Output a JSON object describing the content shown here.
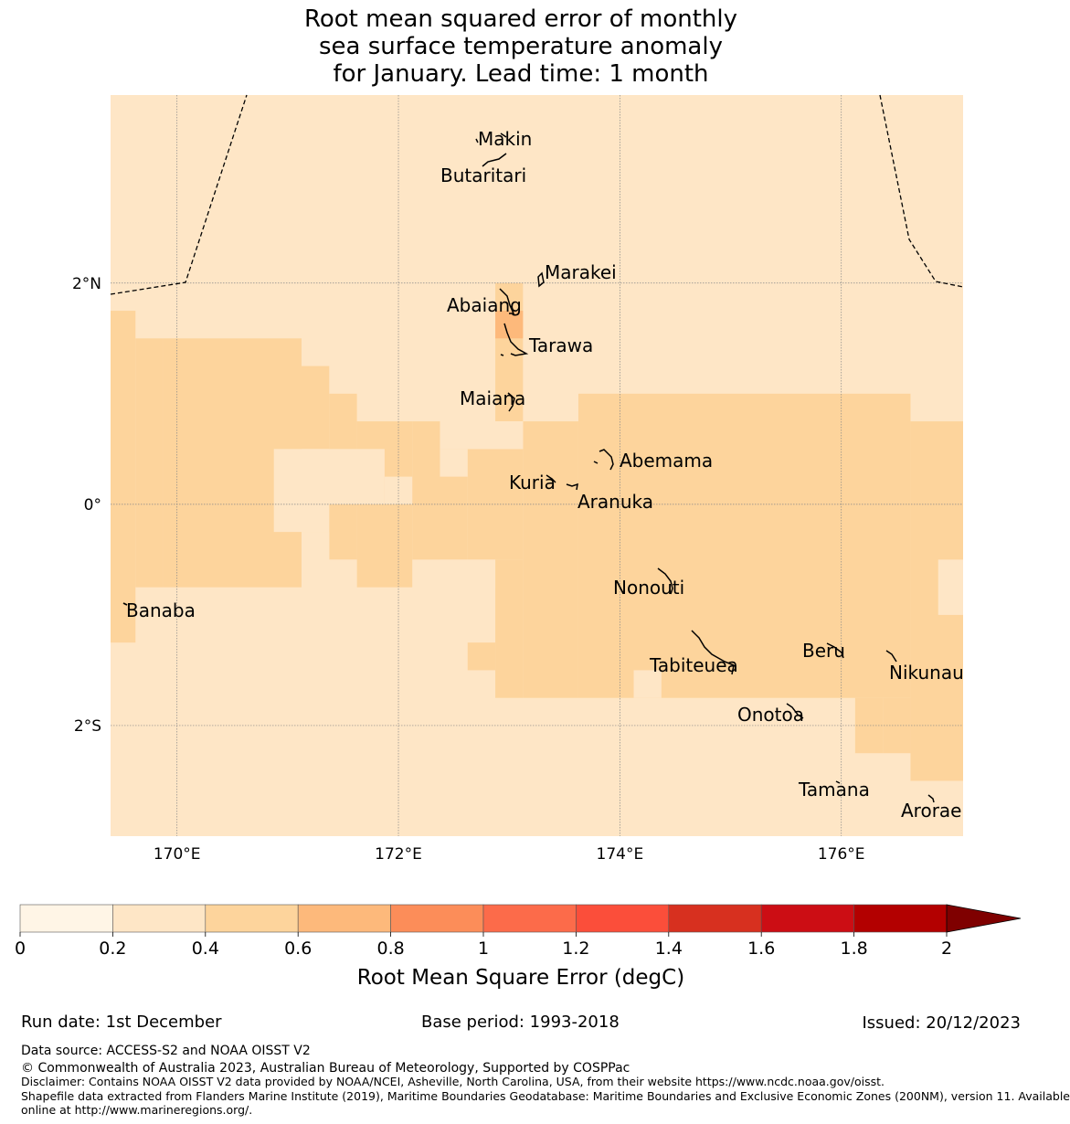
{
  "title": {
    "line1": "Root mean squared error of monthly",
    "line2": "sea surface temperature anomaly",
    "line3": "for January. Lead time: 1 month"
  },
  "map": {
    "lon_range": [
      169.4,
      177.1
    ],
    "lat_range": [
      -3.0,
      3.7
    ],
    "lon_ticks": [
      {
        "value": 170,
        "label": "170°E"
      },
      {
        "value": 172,
        "label": "172°E"
      },
      {
        "value": 174,
        "label": "174°E"
      },
      {
        "value": 176,
        "label": "176°E"
      }
    ],
    "lat_ticks": [
      {
        "value": 2,
        "label": "2°N"
      },
      {
        "value": 0,
        "label": "0°"
      },
      {
        "value": -2,
        "label": "2°S"
      }
    ],
    "background_class": "0.2-0.4",
    "cell_size_deg": 0.25,
    "rmse_patches": [
      {
        "cls": "0.4-0.6",
        "lon": [
          169.4,
          169.625
        ],
        "lat": [
          -1.25,
          1.75
        ]
      },
      {
        "cls": "0.4-0.6",
        "lon": [
          169.625,
          169.875
        ],
        "lat": [
          -0.75,
          1.5
        ]
      },
      {
        "cls": "0.4-0.6",
        "lon": [
          169.875,
          171.125
        ],
        "lat": [
          -0.75,
          1.5
        ]
      },
      {
        "cls": "0.4-0.6",
        "lon": [
          171.125,
          171.375
        ],
        "lat": [
          -0.25,
          1.25
        ]
      },
      {
        "cls": "0.4-0.6",
        "lon": [
          171.375,
          171.625
        ],
        "lat": [
          -0.5,
          1.0
        ]
      },
      {
        "cls": "0.4-0.6",
        "lon": [
          171.625,
          172.125
        ],
        "lat": [
          -0.75,
          0.75
        ]
      },
      {
        "cls": "0.4-0.6",
        "lon": [
          172.125,
          172.375
        ],
        "lat": [
          -0.5,
          0.75
        ]
      },
      {
        "cls": "0.4-0.6",
        "lon": [
          172.375,
          172.625
        ],
        "lat": [
          -0.5,
          0.5
        ]
      },
      {
        "cls": "0.4-0.6",
        "lon": [
          172.625,
          173.125
        ],
        "lat": [
          -0.5,
          0.5
        ]
      },
      {
        "cls": "0.4-0.6",
        "lon": [
          172.875,
          173.125
        ],
        "lat": [
          0.75,
          2.0
        ]
      },
      {
        "cls": "0.4-0.6",
        "lon": [
          173.125,
          173.625
        ],
        "lat": [
          -1.75,
          0.75
        ]
      },
      {
        "cls": "0.4-0.6",
        "lon": [
          173.625,
          176.625
        ],
        "lat": [
          -1.75,
          1.0
        ]
      },
      {
        "cls": "0.4-0.6",
        "lon": [
          176.625,
          177.1
        ],
        "lat": [
          -2.5,
          0.75
        ]
      },
      {
        "cls": "0.4-0.6",
        "lon": [
          172.625,
          172.875
        ],
        "lat": [
          -1.5,
          -1.25
        ]
      },
      {
        "cls": "0.4-0.6",
        "lon": [
          172.875,
          173.125
        ],
        "lat": [
          -1.75,
          -0.5
        ]
      },
      {
        "cls": "0.4-0.6",
        "lon": [
          176.125,
          176.375
        ],
        "lat": [
          -2.25,
          -1.75
        ]
      },
      {
        "cls": "0.4-0.6",
        "lon": [
          176.375,
          176.625
        ],
        "lat": [
          -2.25,
          -1.75
        ]
      },
      {
        "cls": "0.6-0.8",
        "lon": [
          172.875,
          173.125
        ],
        "lat": [
          1.5,
          1.75
        ]
      },
      {
        "cls": "0.2-0.4",
        "lon": [
          170.875,
          171.375
        ],
        "lat": [
          -0.25,
          0.5
        ]
      },
      {
        "cls": "0.2-0.4",
        "lon": [
          171.125,
          171.875
        ],
        "lat": [
          0.0,
          0.5
        ]
      },
      {
        "cls": "0.2-0.4",
        "lon": [
          171.875,
          172.125
        ],
        "lat": [
          0.0,
          0.25
        ]
      },
      {
        "cls": "0.2-0.4",
        "lon": [
          172.375,
          172.625
        ],
        "lat": [
          0.25,
          0.5
        ]
      },
      {
        "cls": "0.2-0.4",
        "lon": [
          172.625,
          173.125
        ],
        "lat": [
          0.5,
          0.75
        ]
      },
      {
        "cls": "0.2-0.4",
        "lon": [
          171.125,
          171.375
        ],
        "lat": [
          -0.75,
          -0.25
        ]
      },
      {
        "cls": "0.2-0.4",
        "lon": [
          171.375,
          171.625
        ],
        "lat": [
          -0.75,
          -0.5
        ]
      },
      {
        "cls": "0.2-0.4",
        "lon": [
          172.375,
          172.875
        ],
        "lat": [
          -0.75,
          -0.5
        ]
      },
      {
        "cls": "0.2-0.4",
        "lon": [
          174.125,
          174.375
        ],
        "lat": [
          -1.75,
          -1.5
        ]
      },
      {
        "cls": "0.2-0.4",
        "lon": [
          176.875,
          177.1
        ],
        "lat": [
          -1.0,
          -0.5
        ]
      },
      {
        "cls": "0.2-0.4",
        "lon": [
          173.125,
          173.625
        ],
        "lat": [
          0.75,
          0.75
        ]
      }
    ],
    "islands": [
      {
        "name": "Makin",
        "lon": 173.0,
        "lat": 3.3
      },
      {
        "name": "Butaritari",
        "lon": 172.8,
        "lat": 3.0
      },
      {
        "name": "Marakei",
        "lon": 173.3,
        "lat": 2.0
      },
      {
        "name": "Abaiang",
        "lon": 172.95,
        "lat": 1.8
      },
      {
        "name": "Tarawa",
        "lon": 173.0,
        "lat": 1.45
      },
      {
        "name": "Maiana",
        "lon": 173.0,
        "lat": 0.95
      },
      {
        "name": "Abemama",
        "lon": 173.85,
        "lat": 0.4
      },
      {
        "name": "Kuria",
        "lon": 173.4,
        "lat": 0.2
      },
      {
        "name": "Aranuka",
        "lon": 173.6,
        "lat": 0.15
      },
      {
        "name": "Nonouti",
        "lon": 174.4,
        "lat": -0.6
      },
      {
        "name": "Banaba",
        "lon": 169.5,
        "lat": -0.85
      },
      {
        "name": "Tabiteuea",
        "lon": 174.8,
        "lat": -1.3
      },
      {
        "name": "Beru",
        "lon": 176.0,
        "lat": -1.35
      },
      {
        "name": "Nikunau",
        "lon": 176.45,
        "lat": -1.35
      },
      {
        "name": "Onotoa",
        "lon": 175.55,
        "lat": -1.8
      },
      {
        "name": "Tamana",
        "lon": 175.97,
        "lat": -2.5
      },
      {
        "name": "Arorae",
        "lon": 176.82,
        "lat": -2.65
      }
    ]
  },
  "colorbar": {
    "levels": [
      0,
      0.2,
      0.4,
      0.6,
      0.8,
      1,
      1.2,
      1.4,
      1.6,
      1.8,
      2
    ],
    "tick_labels": [
      "0",
      "0.2",
      "0.4",
      "0.6",
      "0.8",
      "1",
      "1.2",
      "1.4",
      "1.6",
      "1.8",
      "2"
    ],
    "colors": [
      "#fff5e6",
      "#fee6c6",
      "#fdd49c",
      "#fdb97b",
      "#fc8d59",
      "#fc6b4a",
      "#fb4e3a",
      "#d7301f",
      "#cc0d14",
      "#b30000"
    ],
    "extend_color": "#7f0000",
    "label": "Root Mean Square Error (degC)"
  },
  "footer": {
    "run_date": "Run date: 1st December",
    "base_period": "Base period: 1993-2018",
    "issued": "Issued: 20/12/2023",
    "data_source": "Data source: ACCESS-S2 and NOAA OISST V2",
    "copyright": "© Commonwealth of Australia 2023, Australian Bureau of Meteorology, Supported by COSPPac",
    "disclaimer": "Disclaimer: Contains NOAA OISST V2 data provided by NOAA/NCEI, Asheville, North Carolina, USA, from their website https://www.ncdc.noaa.gov/oisst.",
    "shapefile1": "Shapefile data extracted from Flanders Marine Institute (2019), Maritime Boundaries Geodatabase: Maritime Boundaries and Exclusive Economic Zones (200NM), version 11. Available",
    "shapefile2": "online at http://www.marineregions.org/."
  }
}
